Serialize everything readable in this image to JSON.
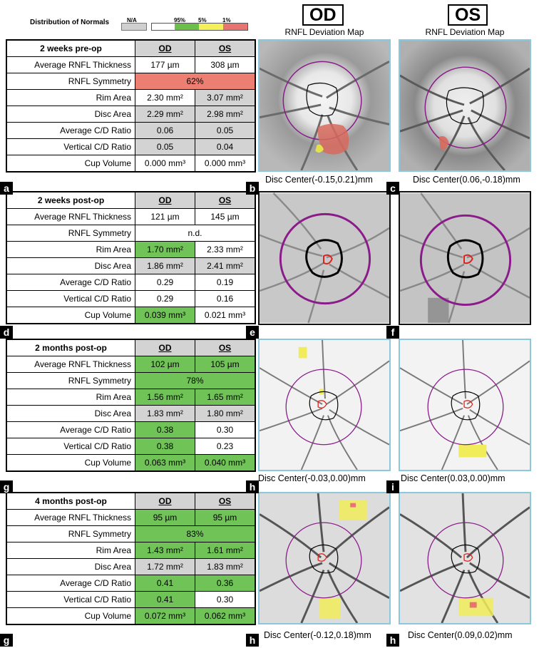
{
  "legend": {
    "title": "Distribution of Normals",
    "na_label": "N/A",
    "p95": "95%",
    "p5": "5%",
    "p1": "1%",
    "colors": {
      "na": "#d0d0d0",
      "white": "#ffffff",
      "green": "#6cc04a",
      "yellow": "#f4f05a",
      "red": "#e97370"
    }
  },
  "headers": {
    "od": "OD",
    "os": "OS",
    "map_title": "RNFL Deviation Map"
  },
  "tables": [
    {
      "title": "2 weeks pre-op",
      "col_od": "OD",
      "col_os": "OS",
      "rows": [
        {
          "label": "Average RNFL Thickness",
          "od": "177 µm",
          "os": "308 µm",
          "od_color": "white",
          "os_color": "white"
        },
        {
          "label": "RNFL Symmetry",
          "merged": "62%",
          "color": "red"
        },
        {
          "label": "Rim Area",
          "od": "2.30 mm²",
          "os": "3.07 mm²",
          "od_color": "white",
          "os_color": "gray"
        },
        {
          "label": "Disc Area",
          "od": "2.29 mm²",
          "os": "2.98 mm²",
          "od_color": "gray",
          "os_color": "gray"
        },
        {
          "label": "Average C/D Ratio",
          "od": "0.06",
          "os": "0.05",
          "od_color": "gray",
          "os_color": "gray"
        },
        {
          "label": "Vertical C/D Ratio",
          "od": "0.05",
          "os": "0.04",
          "od_color": "gray",
          "os_color": "gray"
        },
        {
          "label": "Cup Volume",
          "od": "0.000 mm³",
          "os": "0.000 mm³",
          "od_color": "white",
          "os_color": "white"
        }
      ]
    },
    {
      "title": "2 weeks post-op",
      "col_od": "OD",
      "col_os": "OS",
      "rows": [
        {
          "label": "Average RNFL Thickness",
          "od": "121 µm",
          "os": "145 µm",
          "od_color": "white",
          "os_color": "white"
        },
        {
          "label": "RNFL Symmetry",
          "merged": "n.d.",
          "color": "white"
        },
        {
          "label": "Rim Area",
          "od": "1.70 mm²",
          "os": "2.33 mm²",
          "od_color": "green",
          "os_color": "white"
        },
        {
          "label": "Disc Area",
          "od": "1.86 mm²",
          "os": "2.41 mm²",
          "od_color": "gray",
          "os_color": "gray"
        },
        {
          "label": "Average C/D Ratio",
          "od": "0.29",
          "os": "0.19",
          "od_color": "white",
          "os_color": "white"
        },
        {
          "label": "Vertical C/D Ratio",
          "od": "0.29",
          "os": "0.16",
          "od_color": "white",
          "os_color": "white"
        },
        {
          "label": "Cup Volume",
          "od": "0.039 mm³",
          "os": "0.021 mm³",
          "od_color": "green",
          "os_color": "white"
        }
      ]
    },
    {
      "title": "2 months post-op",
      "col_od": "OD",
      "col_os": "OS",
      "rows": [
        {
          "label": "Average RNFL Thickness",
          "od": "102 µm",
          "os": "105 µm",
          "od_color": "green",
          "os_color": "green"
        },
        {
          "label": "RNFL Symmetry",
          "merged": "78%",
          "color": "green"
        },
        {
          "label": "Rim Area",
          "od": "1.56 mm²",
          "os": "1.65 mm²",
          "od_color": "green",
          "os_color": "green"
        },
        {
          "label": "Disc Area",
          "od": "1.83 mm²",
          "os": "1.80 mm²",
          "od_color": "gray",
          "os_color": "gray"
        },
        {
          "label": "Average C/D Ratio",
          "od": "0.38",
          "os": "0.30",
          "od_color": "green",
          "os_color": "white"
        },
        {
          "label": "Vertical C/D Ratio",
          "od": "0.38",
          "os": "0.23",
          "od_color": "green",
          "os_color": "white"
        },
        {
          "label": "Cup Volume",
          "od": "0.063 mm³",
          "os": "0.040 mm³",
          "od_color": "green",
          "os_color": "green"
        }
      ]
    },
    {
      "title": "4 months post-op",
      "col_od": "OD",
      "col_os": "OS",
      "rows": [
        {
          "label": "Average RNFL Thickness",
          "od": "95 µm",
          "os": "95 µm",
          "od_color": "green",
          "os_color": "green"
        },
        {
          "label": "RNFL Symmetry",
          "merged": "83%",
          "color": "green"
        },
        {
          "label": "Rim Area",
          "od": "1.43 mm²",
          "os": "1.61 mm²",
          "od_color": "green",
          "os_color": "green"
        },
        {
          "label": "Disc Area",
          "od": "1.72 mm²",
          "os": "1.83 mm²",
          "od_color": "gray",
          "os_color": "gray"
        },
        {
          "label": "Average C/D Ratio",
          "od": "0.41",
          "os": "0.36",
          "od_color": "green",
          "os_color": "green"
        },
        {
          "label": "Vertical C/D Ratio",
          "od": "0.41",
          "os": "0.30",
          "od_color": "green",
          "os_color": "white"
        },
        {
          "label": "Cup Volume",
          "od": "0.072 mm³",
          "os": "0.062 mm³",
          "od_color": "green",
          "os_color": "green"
        }
      ]
    }
  ],
  "letters": {
    "r1": [
      "a",
      "b",
      "c"
    ],
    "r2": [
      "d",
      "e",
      "f"
    ],
    "r3": [
      "g",
      "h",
      "i"
    ],
    "r4": [
      "g",
      "h",
      "h"
    ]
  },
  "captions": {
    "r1_od": "Disc Center(-0.15,0.21)mm",
    "r1_os": "Disc Center(0.06,-0.18)mm",
    "r3_od": "Disc Center(-0.03,0.00)mm",
    "r3_os": "Disc Center(0.03,0.00)mm",
    "r4_od": "Disc Center(-0.12,0.18)mm",
    "r4_os": "Disc Center(0.09,0.02)mm"
  }
}
